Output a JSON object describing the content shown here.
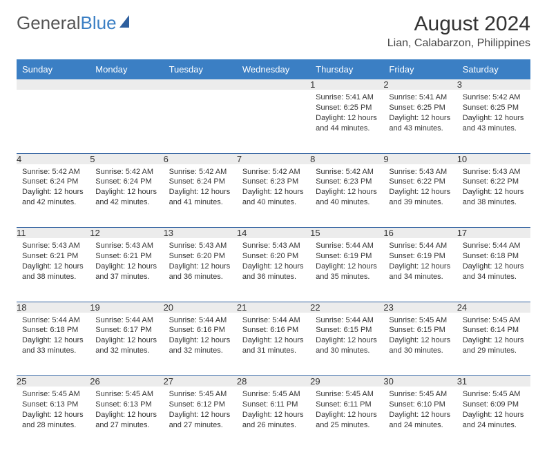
{
  "logo": {
    "text1": "General",
    "text2": "Blue"
  },
  "title": "August 2024",
  "location": "Lian, Calabarzon, Philippines",
  "colors": {
    "header_bg": "#3b7fc4",
    "header_text": "#ffffff",
    "border": "#2e5f9e",
    "daynum_bg": "#ececec",
    "text": "#333333",
    "logo_gray": "#555555",
    "logo_blue": "#3b7fc4"
  },
  "columns": [
    "Sunday",
    "Monday",
    "Tuesday",
    "Wednesday",
    "Thursday",
    "Friday",
    "Saturday"
  ],
  "weeks": [
    [
      null,
      null,
      null,
      null,
      {
        "n": "1",
        "sr": "5:41 AM",
        "ss": "6:25 PM",
        "dl": "12 hours and 44 minutes."
      },
      {
        "n": "2",
        "sr": "5:41 AM",
        "ss": "6:25 PM",
        "dl": "12 hours and 43 minutes."
      },
      {
        "n": "3",
        "sr": "5:42 AM",
        "ss": "6:25 PM",
        "dl": "12 hours and 43 minutes."
      }
    ],
    [
      {
        "n": "4",
        "sr": "5:42 AM",
        "ss": "6:24 PM",
        "dl": "12 hours and 42 minutes."
      },
      {
        "n": "5",
        "sr": "5:42 AM",
        "ss": "6:24 PM",
        "dl": "12 hours and 42 minutes."
      },
      {
        "n": "6",
        "sr": "5:42 AM",
        "ss": "6:24 PM",
        "dl": "12 hours and 41 minutes."
      },
      {
        "n": "7",
        "sr": "5:42 AM",
        "ss": "6:23 PM",
        "dl": "12 hours and 40 minutes."
      },
      {
        "n": "8",
        "sr": "5:42 AM",
        "ss": "6:23 PM",
        "dl": "12 hours and 40 minutes."
      },
      {
        "n": "9",
        "sr": "5:43 AM",
        "ss": "6:22 PM",
        "dl": "12 hours and 39 minutes."
      },
      {
        "n": "10",
        "sr": "5:43 AM",
        "ss": "6:22 PM",
        "dl": "12 hours and 38 minutes."
      }
    ],
    [
      {
        "n": "11",
        "sr": "5:43 AM",
        "ss": "6:21 PM",
        "dl": "12 hours and 38 minutes."
      },
      {
        "n": "12",
        "sr": "5:43 AM",
        "ss": "6:21 PM",
        "dl": "12 hours and 37 minutes."
      },
      {
        "n": "13",
        "sr": "5:43 AM",
        "ss": "6:20 PM",
        "dl": "12 hours and 36 minutes."
      },
      {
        "n": "14",
        "sr": "5:43 AM",
        "ss": "6:20 PM",
        "dl": "12 hours and 36 minutes."
      },
      {
        "n": "15",
        "sr": "5:44 AM",
        "ss": "6:19 PM",
        "dl": "12 hours and 35 minutes."
      },
      {
        "n": "16",
        "sr": "5:44 AM",
        "ss": "6:19 PM",
        "dl": "12 hours and 34 minutes."
      },
      {
        "n": "17",
        "sr": "5:44 AM",
        "ss": "6:18 PM",
        "dl": "12 hours and 34 minutes."
      }
    ],
    [
      {
        "n": "18",
        "sr": "5:44 AM",
        "ss": "6:18 PM",
        "dl": "12 hours and 33 minutes."
      },
      {
        "n": "19",
        "sr": "5:44 AM",
        "ss": "6:17 PM",
        "dl": "12 hours and 32 minutes."
      },
      {
        "n": "20",
        "sr": "5:44 AM",
        "ss": "6:16 PM",
        "dl": "12 hours and 32 minutes."
      },
      {
        "n": "21",
        "sr": "5:44 AM",
        "ss": "6:16 PM",
        "dl": "12 hours and 31 minutes."
      },
      {
        "n": "22",
        "sr": "5:44 AM",
        "ss": "6:15 PM",
        "dl": "12 hours and 30 minutes."
      },
      {
        "n": "23",
        "sr": "5:45 AM",
        "ss": "6:15 PM",
        "dl": "12 hours and 30 minutes."
      },
      {
        "n": "24",
        "sr": "5:45 AM",
        "ss": "6:14 PM",
        "dl": "12 hours and 29 minutes."
      }
    ],
    [
      {
        "n": "25",
        "sr": "5:45 AM",
        "ss": "6:13 PM",
        "dl": "12 hours and 28 minutes."
      },
      {
        "n": "26",
        "sr": "5:45 AM",
        "ss": "6:13 PM",
        "dl": "12 hours and 27 minutes."
      },
      {
        "n": "27",
        "sr": "5:45 AM",
        "ss": "6:12 PM",
        "dl": "12 hours and 27 minutes."
      },
      {
        "n": "28",
        "sr": "5:45 AM",
        "ss": "6:11 PM",
        "dl": "12 hours and 26 minutes."
      },
      {
        "n": "29",
        "sr": "5:45 AM",
        "ss": "6:11 PM",
        "dl": "12 hours and 25 minutes."
      },
      {
        "n": "30",
        "sr": "5:45 AM",
        "ss": "6:10 PM",
        "dl": "12 hours and 24 minutes."
      },
      {
        "n": "31",
        "sr": "5:45 AM",
        "ss": "6:09 PM",
        "dl": "12 hours and 24 minutes."
      }
    ]
  ],
  "labels": {
    "sunrise": "Sunrise:",
    "sunset": "Sunset:",
    "daylight": "Daylight:"
  }
}
